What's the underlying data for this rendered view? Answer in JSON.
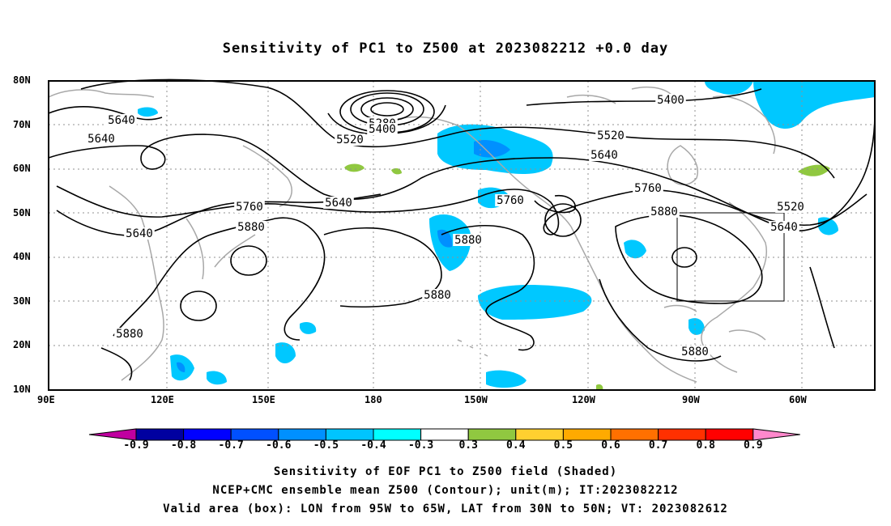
{
  "title": "Sensitivity of PC1 to Z500 at 2023082212 +0.0 day",
  "lat_labels": [
    "80N",
    "70N",
    "60N",
    "50N",
    "40N",
    "30N",
    "20N",
    "10N"
  ],
  "lon_labels": [
    "90E",
    "120E",
    "150E",
    "180",
    "150W",
    "120W",
    "90W",
    "60W"
  ],
  "contour_labels": [
    "5280",
    "5400",
    "5400",
    "5520",
    "5520",
    "5520",
    "5640",
    "5640",
    "5640",
    "5640",
    "5640",
    "5640",
    "5760",
    "5760",
    "5760",
    "5880",
    "5880",
    "5880",
    "5880",
    "5880",
    "5880"
  ],
  "colorbar": {
    "labels": [
      "-0.9",
      "-0.8",
      "-0.7",
      "-0.6",
      "-0.5",
      "-0.4",
      "-0.3",
      "0.3",
      "0.4",
      "0.5",
      "0.6",
      "0.7",
      "0.8",
      "0.9"
    ],
    "colors": [
      "#0000a0",
      "#0000ff",
      "#0050ff",
      "#0090ff",
      "#00c4ff",
      "#00ffff",
      "#ffffff",
      "#90c840",
      "#ffd030",
      "#ffaa00",
      "#ff7000",
      "#ff3000",
      "#ff0000"
    ],
    "left_triangle_color": "#c000a0",
    "right_triangle_color": "#ff88cc"
  },
  "footer": {
    "line1": "Sensitivity of EOF PC1 to Z500 field (Shaded)",
    "line2": "NCEP+CMC ensemble mean Z500 (Contour); unit(m); IT:2023082212",
    "line3": "Valid area (box): LON from 95W to 65W, LAT from 30N to 50N; VT: 2023082612"
  },
  "colors": {
    "negative_shading": "#00c8ff",
    "negative_strong": "#0090ff",
    "positive_shading": "#90c840",
    "coastline": "#a8a8a8",
    "contour": "#000000"
  }
}
